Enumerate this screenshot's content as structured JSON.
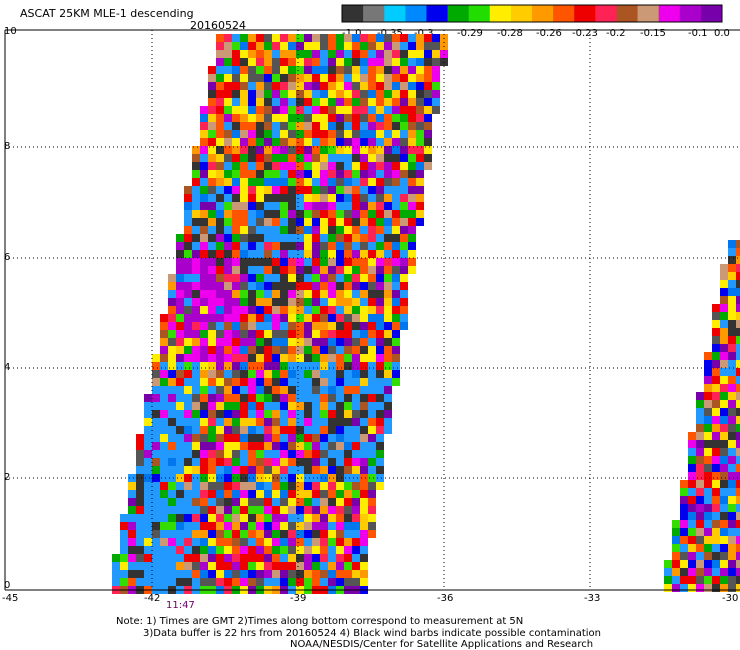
{
  "title": "ASCAT 25KM MLE-1 descending",
  "date": "20160524",
  "colorbar": {
    "labels": [
      "-1.0",
      "-0.35",
      "-0.3",
      "-0.29",
      "-0.28",
      "-0.26",
      "-0.23",
      "-0.2",
      "-0.15",
      "-0.1",
      "0.0"
    ],
    "colors": [
      "#333333",
      "#777777",
      "#00ccff",
      "#0088ff",
      "#0000ee",
      "#00aa00",
      "#22dd00",
      "#ffee00",
      "#ffcc00",
      "#ff9900",
      "#ff5500",
      "#ee0000",
      "#ff2255",
      "#aa5522",
      "#cc9977",
      "#ee00ee",
      "#aa00cc",
      "#7700aa"
    ]
  },
  "axes": {
    "x_ticks": [
      "-45",
      "-42",
      "-39",
      "-36",
      "-33",
      "-30"
    ],
    "y_ticks": [
      "0",
      "2",
      "4",
      "6",
      "8",
      "10"
    ],
    "xlim": [
      -45,
      -30
    ],
    "ylim": [
      0,
      10.4
    ]
  },
  "pass_time": "11:47",
  "notes": [
    "Note: 1) Times are GMT 2)Times along bottom correspond to measurement at 5N",
    "3)Data buffer is 22 hrs from 20160524 4) Black wind barbs indicate possible contamination",
    "NOAA/NESDIS/Center for Satellite Applications and Research"
  ]
}
